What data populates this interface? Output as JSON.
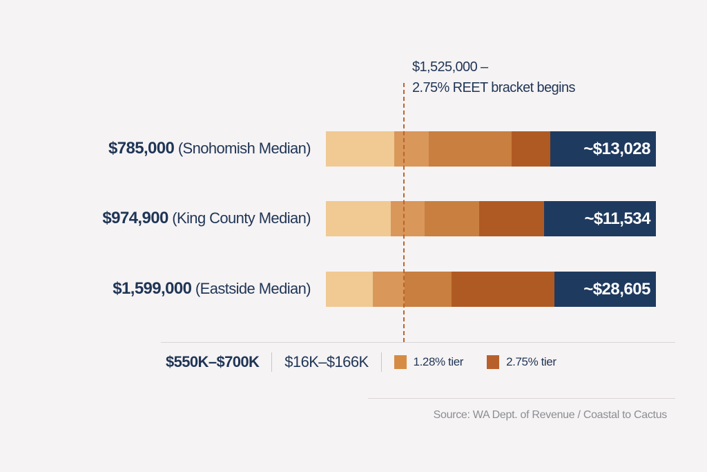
{
  "chart_data": {
    "type": "bar",
    "orientation": "horizontal",
    "stacked": true,
    "annotation": {
      "line1": "$1,525,000 –",
      "line2": "2.75% REET bracket begins",
      "threshold": 1525000,
      "line_style": "dashed"
    },
    "rows": [
      {
        "price": "$785,000",
        "label": "(Snohomish Median)",
        "total": "~$13,028",
        "segment_shares_pct": [
          20.7,
          10.5,
          25.1,
          11.7,
          32.0
        ]
      },
      {
        "price": "$974,900",
        "label": "(King County Median)",
        "total": "~$11,534",
        "segment_shares_pct": [
          19.7,
          10.3,
          16.5,
          19.7,
          33.8
        ]
      },
      {
        "price": "$1,599,000",
        "label": "(Eastside Median)",
        "total": "~$28,605",
        "segment_shares_pct": [
          14.2,
          9.6,
          14.2,
          31.2,
          30.8
        ]
      }
    ],
    "segment_colors": [
      "#f0c993",
      "#d9975a",
      "#c87f3f",
      "#b05a23",
      "#1f3a5f"
    ],
    "legend": {
      "range1": "$550K–$700K",
      "range2": "$16K–$166K",
      "items": [
        {
          "label": "1.28% tier",
          "color": "#d68b45"
        },
        {
          "label": "2.75% tier",
          "color": "#b8602c"
        }
      ]
    },
    "source": "Source: WA Dept. of Revenue / Coastal to Cactus"
  }
}
